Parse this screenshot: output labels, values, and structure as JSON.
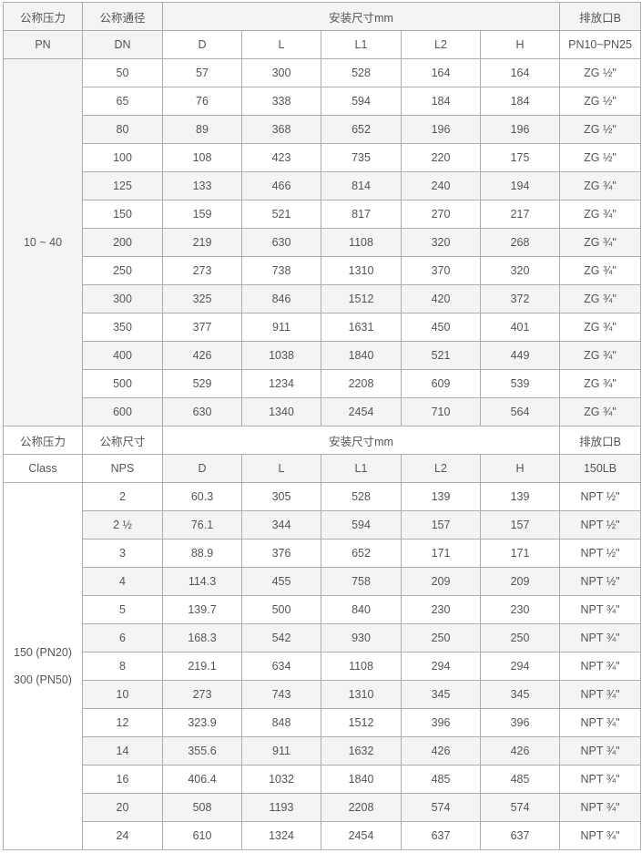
{
  "colors": {
    "stripe": "#f4f4f4",
    "border": "#adadad",
    "text": "#555555"
  },
  "section1": {
    "header": {
      "pressure": "公称压力",
      "pressure_unit": "PN",
      "size": "公称通径",
      "size_unit": "DN",
      "dims": "安装尺寸mm",
      "cols": [
        "D",
        "L",
        "L1",
        "L2",
        "H"
      ],
      "drain": "排放口B",
      "drain_sub": "PN10~PN25"
    },
    "group_label": "10 ~ 40",
    "rows": [
      [
        "50",
        "57",
        "300",
        "528",
        "164",
        "164",
        "ZG ½\""
      ],
      [
        "65",
        "76",
        "338",
        "594",
        "184",
        "184",
        "ZG ½\""
      ],
      [
        "80",
        "89",
        "368",
        "652",
        "196",
        "196",
        "ZG ½\""
      ],
      [
        "100",
        "108",
        "423",
        "735",
        "220",
        "175",
        "ZG ½\""
      ],
      [
        "125",
        "133",
        "466",
        "814",
        "240",
        "194",
        "ZG ¾\""
      ],
      [
        "150",
        "159",
        "521",
        "817",
        "270",
        "217",
        "ZG ¾\""
      ],
      [
        "200",
        "219",
        "630",
        "1108",
        "320",
        "268",
        "ZG ¾\""
      ],
      [
        "250",
        "273",
        "738",
        "1310",
        "370",
        "320",
        "ZG ¾\""
      ],
      [
        "300",
        "325",
        "846",
        "1512",
        "420",
        "372",
        "ZG ¾\""
      ],
      [
        "350",
        "377",
        "911",
        "1631",
        "450",
        "401",
        "ZG ¾\""
      ],
      [
        "400",
        "426",
        "1038",
        "1840",
        "521",
        "449",
        "ZG ¾\""
      ],
      [
        "500",
        "529",
        "1234",
        "2208",
        "609",
        "539",
        "ZG ¾\""
      ],
      [
        "600",
        "630",
        "1340",
        "2454",
        "710",
        "564",
        "ZG ¾\""
      ]
    ]
  },
  "section2": {
    "header": {
      "pressure": "公称压力",
      "pressure_unit": "Class",
      "size": "公称尺寸",
      "size_unit": "NPS",
      "dims": "安装尺寸mm",
      "cols": [
        "D",
        "L",
        "L1",
        "L2",
        "H"
      ],
      "drain": "排放口B",
      "drain_sub": "150LB"
    },
    "group_label": [
      "150 (PN20)",
      "300 (PN50)"
    ],
    "rows": [
      [
        "2",
        "60.3",
        "305",
        "528",
        "139",
        "139",
        "NPT ½\""
      ],
      [
        "2 ½",
        "76.1",
        "344",
        "594",
        "157",
        "157",
        "NPT ½\""
      ],
      [
        "3",
        "88.9",
        "376",
        "652",
        "171",
        "171",
        "NPT ½\""
      ],
      [
        "4",
        "114.3",
        "455",
        "758",
        "209",
        "209",
        "NPT ½\""
      ],
      [
        "5",
        "139.7",
        "500",
        "840",
        "230",
        "230",
        "NPT ¾\""
      ],
      [
        "6",
        "168.3",
        "542",
        "930",
        "250",
        "250",
        "NPT ¾\""
      ],
      [
        "8",
        "219.1",
        "634",
        "1108",
        "294",
        "294",
        "NPT ¾\""
      ],
      [
        "10",
        "273",
        "743",
        "1310",
        "345",
        "345",
        "NPT ¾\""
      ],
      [
        "12",
        "323.9",
        "848",
        "1512",
        "396",
        "396",
        "NPT ¾\""
      ],
      [
        "14",
        "355.6",
        "911",
        "1632",
        "426",
        "426",
        "NPT ¾\""
      ],
      [
        "16",
        "406.4",
        "1032",
        "1840",
        "485",
        "485",
        "NPT ¾\""
      ],
      [
        "20",
        "508",
        "1193",
        "2208",
        "574",
        "574",
        "NPT ¾\""
      ],
      [
        "24",
        "610",
        "1324",
        "2454",
        "637",
        "637",
        "NPT ¾\""
      ]
    ]
  }
}
